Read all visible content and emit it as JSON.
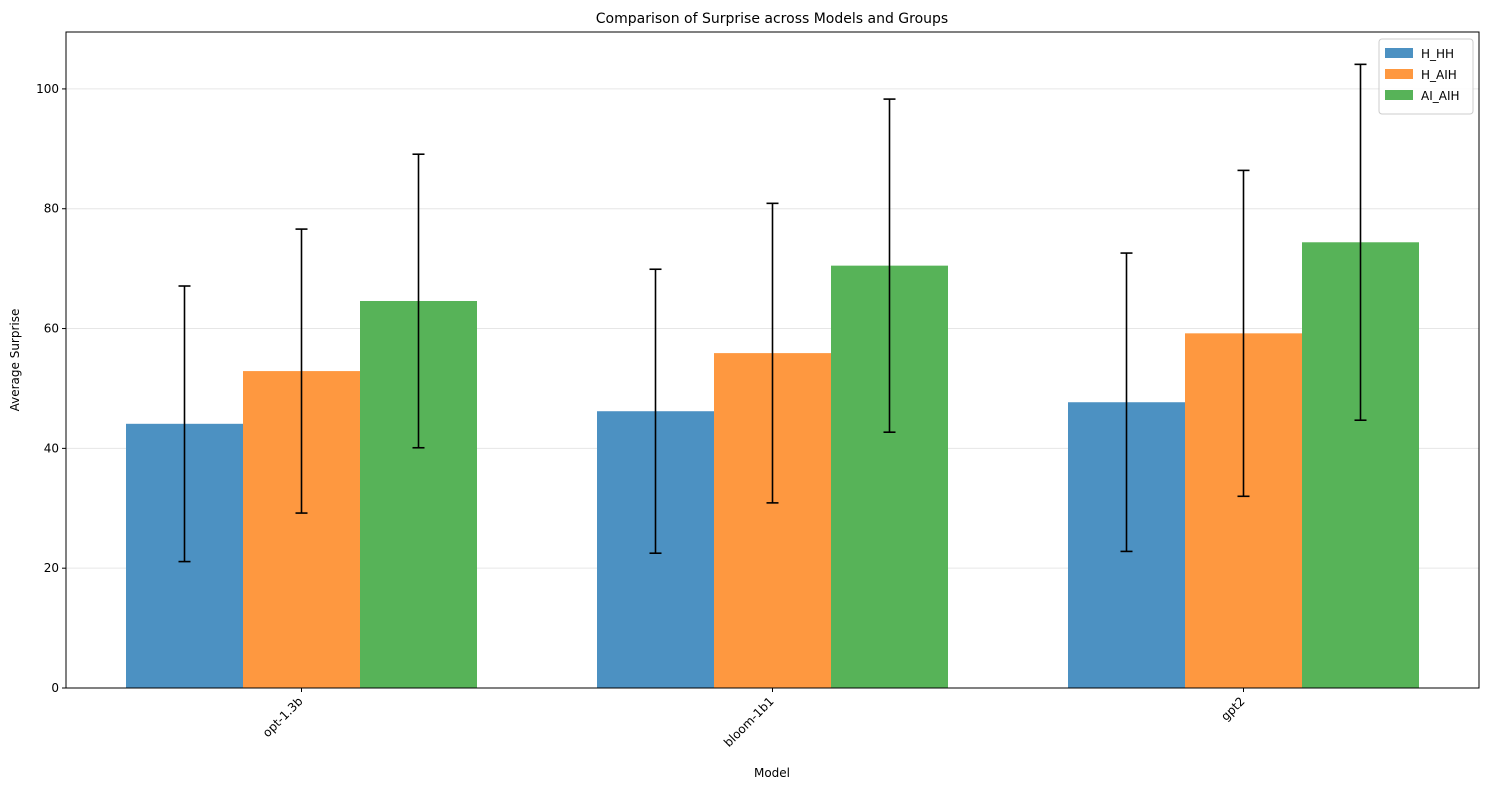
{
  "chart_data": {
    "type": "bar",
    "title": "Comparison of Surprise across Models and Groups",
    "xlabel": "Model",
    "ylabel": "Average Surprise",
    "categories": [
      "opt-1.3b",
      "bloom-1b1",
      "gpt2"
    ],
    "ylim": [
      0,
      109.5
    ],
    "yticks": [
      0,
      20,
      40,
      60,
      80,
      100
    ],
    "grid": "y",
    "legend_position": "top-right",
    "error_bars": true,
    "series": [
      {
        "name": "H_HH",
        "color": "#4c91c2",
        "values": [
          44.1,
          46.2,
          47.7
        ],
        "error": [
          23.0,
          23.7,
          24.9
        ]
      },
      {
        "name": "H_AIH",
        "color": "#fe9840",
        "values": [
          52.9,
          55.9,
          59.2
        ],
        "error": [
          23.7,
          25.0,
          27.2
        ]
      },
      {
        "name": "AI_AIH",
        "color": "#57b358",
        "values": [
          64.6,
          70.5,
          74.4
        ],
        "error": [
          24.5,
          27.8,
          29.7
        ]
      }
    ]
  }
}
